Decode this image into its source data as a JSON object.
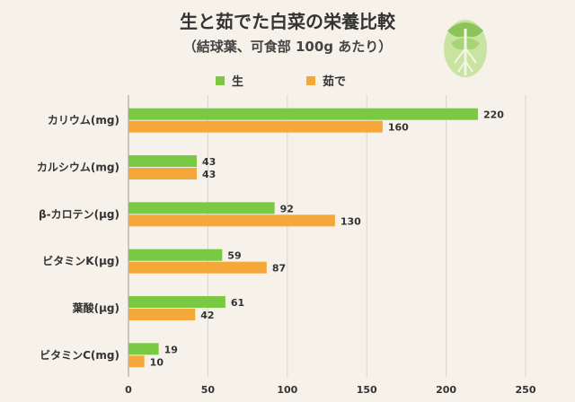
{
  "chart_data": {
    "type": "bar",
    "orientation": "horizontal",
    "title": "生と茹でた白菜の栄養比較",
    "subtitle": "（結球葉、可食部 100g あたり）",
    "categories": [
      "カリウム(mg)",
      "カルシウム(mg)",
      "β-カロテン(μg)",
      "ビタミンK(μg)",
      "葉酸(μg)",
      "ビタミンC(mg)"
    ],
    "series": [
      {
        "name": "生",
        "color": "#7ac943",
        "values": [
          220,
          43,
          92,
          59,
          61,
          19
        ]
      },
      {
        "name": "茹で",
        "color": "#f5a83a",
        "values": [
          160,
          43,
          130,
          87,
          42,
          10
        ]
      }
    ],
    "xlim": [
      0,
      250
    ],
    "xticks": [
      "0",
      "50",
      "100",
      "150",
      "200",
      "250"
    ],
    "grid": true,
    "legend_position": "top"
  },
  "colors": {
    "raw": "#7ac943",
    "boiled": "#f5a83a",
    "grid": "#d8d4cc"
  },
  "decor": {
    "icon": "cabbage-icon"
  }
}
